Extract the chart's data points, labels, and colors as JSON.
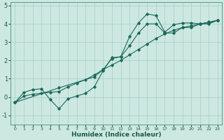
{
  "title": "",
  "xlabel": "Humidex (Indice chaleur)",
  "bg_color": "#cce8e0",
  "grid_color": "#aacccc",
  "line_color": "#1a6a5a",
  "xlim": [
    -0.5,
    23.5
  ],
  "ylim": [
    -1.5,
    5.2
  ],
  "xticks": [
    0,
    1,
    2,
    3,
    4,
    5,
    6,
    7,
    8,
    9,
    10,
    11,
    12,
    13,
    14,
    15,
    16,
    17,
    18,
    19,
    20,
    21,
    22,
    23
  ],
  "yticks": [
    -1,
    0,
    1,
    2,
    3,
    4,
    5
  ],
  "line1_x": [
    0,
    1,
    2,
    3,
    4,
    5,
    6,
    7,
    8,
    9,
    10,
    11,
    12,
    13,
    14,
    15,
    16,
    17,
    18,
    19,
    20,
    21,
    22,
    23
  ],
  "line1_y": [
    -0.3,
    0.25,
    0.4,
    0.45,
    -0.15,
    -0.65,
    -0.1,
    0.05,
    0.2,
    0.55,
    1.45,
    2.15,
    2.2,
    3.3,
    4.05,
    4.55,
    4.45,
    3.55,
    3.95,
    4.05,
    4.05,
    4.0,
    4.05,
    4.2
  ],
  "line2_x": [
    0,
    1,
    2,
    3,
    4,
    5,
    6,
    7,
    8,
    9,
    10,
    11,
    12,
    13,
    14,
    15,
    16,
    17,
    18,
    19,
    20,
    21,
    22,
    23
  ],
  "line2_y": [
    -0.3,
    0.05,
    0.15,
    0.2,
    0.25,
    0.3,
    0.55,
    0.75,
    0.95,
    1.2,
    1.5,
    1.75,
    2.0,
    2.3,
    2.6,
    2.9,
    3.2,
    3.45,
    3.65,
    3.8,
    3.9,
    4.0,
    4.1,
    4.2
  ],
  "line3_x": [
    0,
    5,
    9,
    10,
    11,
    12,
    13,
    14,
    15,
    16,
    17,
    18,
    19,
    20,
    21,
    22,
    23
  ],
  "line3_y": [
    -0.3,
    0.5,
    1.1,
    1.5,
    2.1,
    2.2,
    2.8,
    3.5,
    4.0,
    4.0,
    3.5,
    3.5,
    3.8,
    3.8,
    4.0,
    4.0,
    4.2
  ],
  "xlabel_color": "#1a5a4a",
  "tick_color": "#1a5a4a",
  "xlabel_fontsize": 6.5,
  "xtick_fontsize": 4.5,
  "ytick_fontsize": 6.0
}
